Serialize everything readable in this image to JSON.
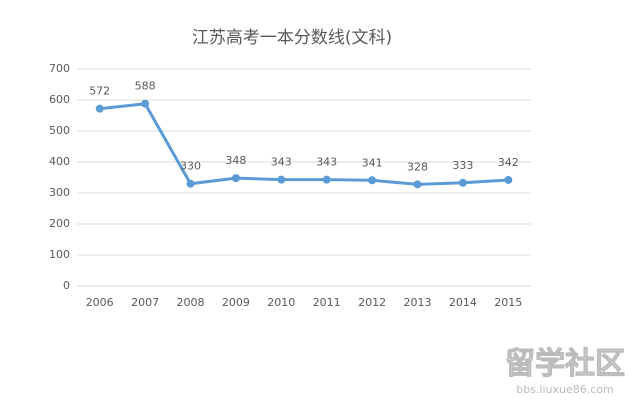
{
  "chart_data": {
    "type": "line",
    "title": "江苏高考一本分数线(文科)",
    "categories": [
      "2006",
      "2007",
      "2008",
      "2009",
      "2010",
      "2011",
      "2012",
      "2013",
      "2014",
      "2015"
    ],
    "series": [
      {
        "name": "文科",
        "color": "#5b9bd5",
        "values": [
          572,
          588,
          330,
          348,
          343,
          343,
          341,
          328,
          333,
          342
        ]
      }
    ],
    "ylim": [
      0,
      700
    ],
    "yticks": [
      0,
      100,
      200,
      300,
      400,
      500,
      600,
      700
    ],
    "grid": true,
    "data_labels": true
  },
  "watermark": {
    "title": "留学社区",
    "url": "bbs.liuxue86.com"
  }
}
